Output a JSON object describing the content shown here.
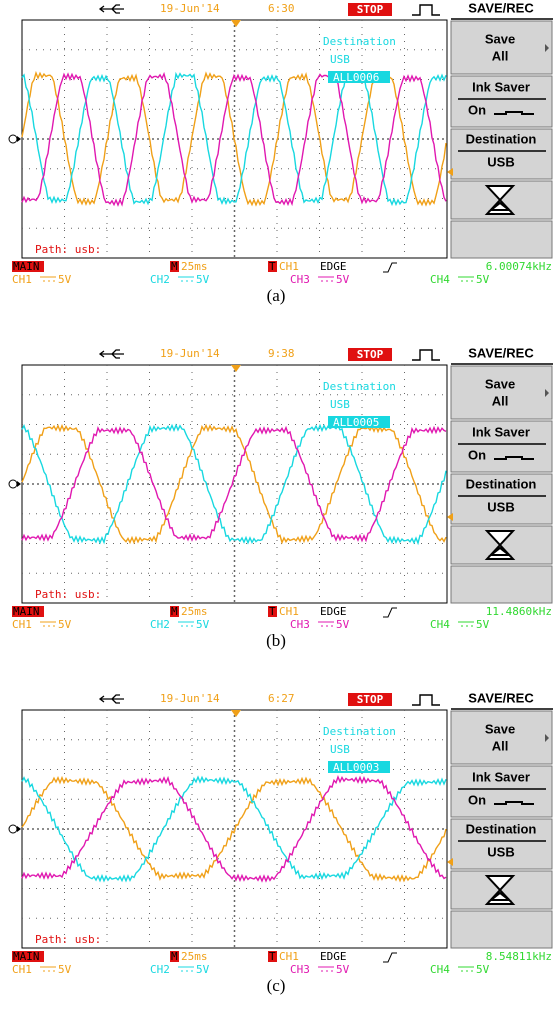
{
  "panels": [
    {
      "caption": "(a)",
      "date": "19-Jun'14",
      "time": "6:30",
      "status": "STOP",
      "menu_title": "SAVE/REC",
      "menu": {
        "save": "Save",
        "all": "All",
        "ink_saver": "Ink Saver",
        "on": "On",
        "destination": "Destination",
        "usb": "USB"
      },
      "overlay": [
        "Destination",
        "USB",
        "ALL0006"
      ],
      "path": "Path: usb:",
      "mode": "MAIN",
      "timebase_label": "M",
      "timebase": "25ms",
      "trigger_label": "T",
      "trigger_source": "CH1",
      "trigger_type": "EDGE",
      "frequency": "6.00074kHz",
      "channels": [
        {
          "name": "CH1",
          "scale": "5V",
          "color": "#f0a018"
        },
        {
          "name": "CH2",
          "scale": "5V",
          "color": "#18d8e0"
        },
        {
          "name": "CH3",
          "scale": "5V",
          "color": "#e018b0"
        },
        {
          "name": "CH4",
          "scale": "5V",
          "color": "#30d830"
        }
      ]
    },
    {
      "caption": "(b)",
      "date": "19-Jun'14",
      "time": "9:38",
      "status": "STOP",
      "menu_title": "SAVE/REC",
      "menu": {
        "save": "Save",
        "all": "All",
        "ink_saver": "Ink Saver",
        "on": "On",
        "destination": "Destination",
        "usb": "USB"
      },
      "overlay": [
        "Destination",
        "USB",
        "ALL0005"
      ],
      "path": "Path: usb:",
      "mode": "MAIN",
      "timebase_label": "M",
      "timebase": "25ms",
      "trigger_label": "T",
      "trigger_source": "CH1",
      "trigger_type": "EDGE",
      "frequency": "11.4860kHz",
      "channels": [
        {
          "name": "CH1",
          "scale": "5V",
          "color": "#f0a018"
        },
        {
          "name": "CH2",
          "scale": "5V",
          "color": "#18d8e0"
        },
        {
          "name": "CH3",
          "scale": "5V",
          "color": "#e018b0"
        },
        {
          "name": "CH4",
          "scale": "5V",
          "color": "#30d830"
        }
      ]
    },
    {
      "caption": "(c)",
      "date": "19-Jun'14",
      "time": "6:27",
      "status": "STOP",
      "menu_title": "SAVE/REC",
      "menu": {
        "save": "Save",
        "all": "All",
        "ink_saver": "Ink Saver",
        "on": "On",
        "destination": "Destination",
        "usb": "USB"
      },
      "overlay": [
        "Destination",
        "USB",
        "ALL0003"
      ],
      "path": "Path: usb:",
      "mode": "MAIN",
      "timebase_label": "M",
      "timebase": "25ms",
      "trigger_label": "T",
      "trigger_source": "CH1",
      "trigger_type": "EDGE",
      "frequency": "8.54811kHz",
      "channels": [
        {
          "name": "CH1",
          "scale": "5V",
          "color": "#f0a018"
        },
        {
          "name": "CH2",
          "scale": "5V",
          "color": "#18d8e0"
        },
        {
          "name": "CH3",
          "scale": "5V",
          "color": "#e018b0"
        },
        {
          "name": "CH4",
          "scale": "5V",
          "color": "#30d830"
        }
      ]
    }
  ]
}
